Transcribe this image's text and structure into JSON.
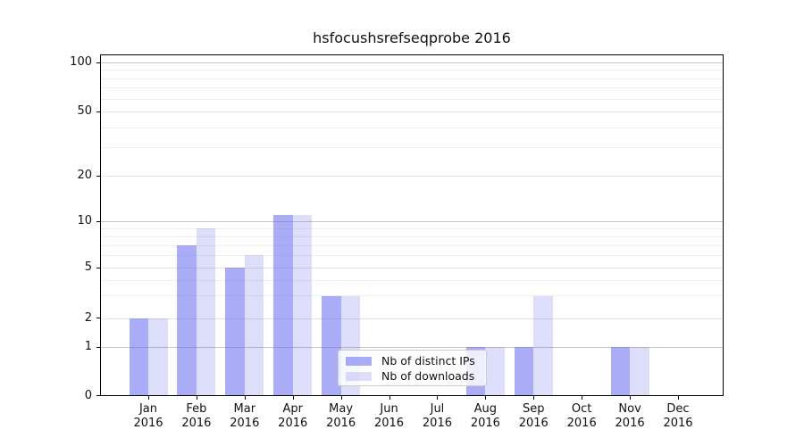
{
  "title": "hsfocushsrefseqprobe 2016",
  "legend": {
    "items": [
      {
        "label": "Nb of distinct IPs"
      },
      {
        "label": "Nb of downloads"
      }
    ]
  },
  "colors": {
    "distinct_ips_fill": "rgba(100,106,239,0.55)",
    "downloads_fill": "rgba(85,90,230,0.20)",
    "distinct_ips_hex_over_white": "#acaff6",
    "downloads_hex_over_white": "#dbdcfa",
    "grid_decade": "#c6c6c6",
    "grid_mid": "#e3e3e3",
    "grid_minor": "#efefef"
  },
  "chart_data": {
    "type": "bar",
    "title": "hsfocushsrefseqprobe 2016",
    "categories": [
      "Jan 2016",
      "Feb 2016",
      "Mar 2016",
      "Apr 2016",
      "May 2016",
      "Jun 2016",
      "Jul 2016",
      "Aug 2016",
      "Sep 2016",
      "Oct 2016",
      "Nov 2016",
      "Dec 2016"
    ],
    "x_months": [
      "Jan",
      "Feb",
      "Mar",
      "Apr",
      "May",
      "Jun",
      "Jul",
      "Aug",
      "Sep",
      "Oct",
      "Nov",
      "Dec"
    ],
    "x_year": "2016",
    "series": [
      {
        "name": "Nb of distinct IPs",
        "color": "rgba(100,106,239,0.55)",
        "values": [
          2,
          7,
          5,
          11,
          3,
          0,
          0,
          1,
          1,
          0,
          1,
          0
        ]
      },
      {
        "name": "Nb of downloads",
        "color": "rgba(85,90,230,0.20)",
        "values": [
          2,
          9,
          6,
          11,
          3,
          0,
          0,
          1,
          3,
          0,
          1,
          0
        ]
      }
    ],
    "y_axis": {
      "scale": "symlog",
      "ticks": [
        100,
        50,
        20,
        10,
        5,
        2,
        1,
        0
      ],
      "minor_ticks": [
        3,
        4,
        6,
        7,
        8,
        9,
        30,
        40,
        60,
        70,
        80,
        90
      ],
      "ylim": [
        0,
        113
      ]
    },
    "xlabel": "",
    "ylabel": "",
    "grid": true,
    "legend_position": "lower-center-inside"
  }
}
